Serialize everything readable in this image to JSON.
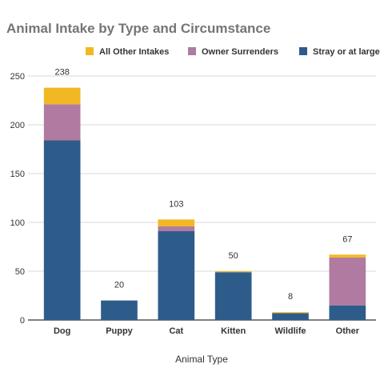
{
  "chart_data": {
    "type": "bar",
    "stacked": true,
    "title": "Animal Intake by Type and Circumstance",
    "xlabel": "Animal Type",
    "ylabel": "",
    "ylim": [
      0,
      250
    ],
    "yticks": [
      0,
      50,
      100,
      150,
      200,
      250
    ],
    "grid": true,
    "legend_position": "top",
    "categories": [
      "Dog",
      "Puppy",
      "Cat",
      "Kitten",
      "Wildlife",
      "Other"
    ],
    "series": [
      {
        "name": "Stray or at large",
        "color": "#2e5c8a",
        "values": [
          184,
          20,
          91,
          49,
          7,
          15
        ]
      },
      {
        "name": "Owner Surrenders",
        "color": "#b07aa1",
        "values": [
          37,
          0,
          5,
          0,
          0,
          49
        ]
      },
      {
        "name": "All Other Intakes",
        "color": "#f2b824",
        "values": [
          17,
          0,
          7,
          1,
          1,
          3
        ]
      }
    ],
    "legend_order": [
      "All Other Intakes",
      "Owner Surrenders",
      "Stray or at large"
    ],
    "totals": [
      "238",
      "20",
      "103",
      "50",
      "8",
      "67"
    ]
  }
}
